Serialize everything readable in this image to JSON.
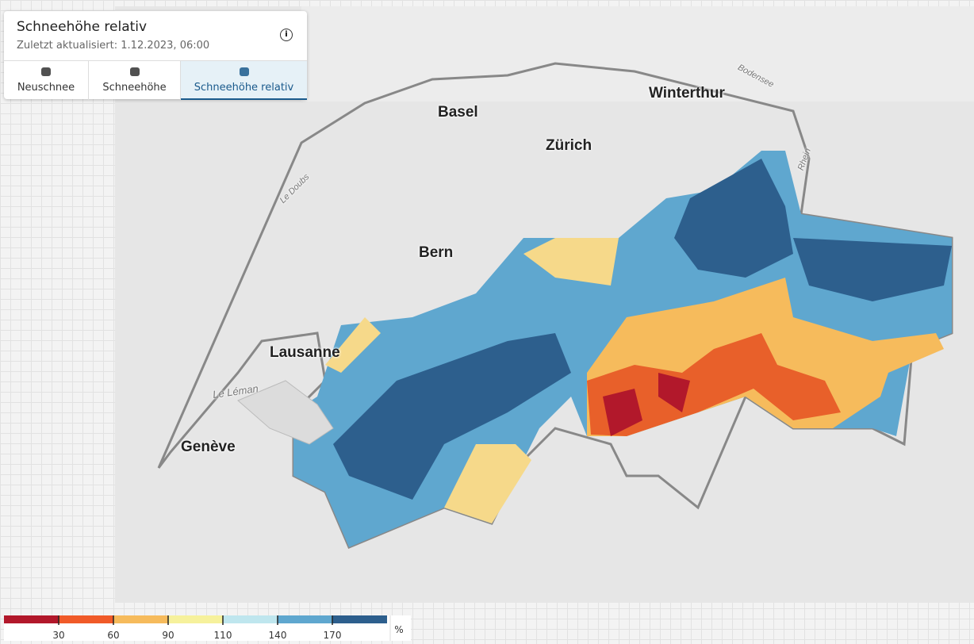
{
  "header": {
    "title": "Schneehöhe relativ",
    "subtitle": "Zuletzt aktualisiert: 1.12.2023, 06:00"
  },
  "tabs": [
    {
      "label": "Neuschnee"
    },
    {
      "label": "Schneehöhe"
    },
    {
      "label": "Schneehöhe relativ",
      "active": true
    }
  ],
  "map": {
    "labels": [
      "Basel",
      "Winterthur",
      "Zürich",
      "Bern",
      "Lausanne",
      "Genève",
      "Le Léman",
      "Bodensee",
      "Le Doubs",
      "Rhein"
    ]
  },
  "legend": {
    "colors": [
      "#b2182b",
      "#f05a28",
      "#f6bb5c",
      "#f6f19c",
      "#bfe6ee",
      "#5fa7cf",
      "#2d5f8d"
    ],
    "ticks": [
      30,
      60,
      90,
      110,
      140,
      170
    ],
    "unit": "%"
  }
}
